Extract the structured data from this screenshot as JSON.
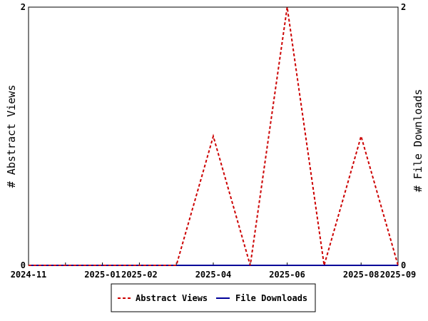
{
  "chart_data": {
    "type": "line",
    "title": "",
    "x_tick_labels": [
      "2024-11",
      "2025-01",
      "2025-02",
      "2025-04",
      "2025-06",
      "2025-08",
      "2025-09"
    ],
    "x": [
      "2024-11",
      "2024-12",
      "2025-01",
      "2025-02",
      "2025-03",
      "2025-04",
      "2025-05",
      "2025-06",
      "2025-07",
      "2025-08",
      "2025-09"
    ],
    "ylabel_left": "# Abstract Views",
    "ylabel_right": "# File Downloads",
    "ylim": [
      0,
      2
    ],
    "y_tick_labels": [
      "0",
      "2"
    ],
    "grid": false,
    "legend_position": "bottom-center",
    "series": [
      {
        "name": "Abstract Views",
        "color": "#cc0000",
        "style": "dashed",
        "axis": "left",
        "values": [
          0,
          0,
          0,
          0,
          0,
          1,
          0,
          2,
          0,
          1,
          0
        ]
      },
      {
        "name": "File Downloads",
        "color": "#000099",
        "style": "solid",
        "axis": "right",
        "values": [
          0,
          0,
          0,
          0,
          0,
          0,
          0,
          0,
          0,
          0,
          0
        ]
      }
    ]
  }
}
